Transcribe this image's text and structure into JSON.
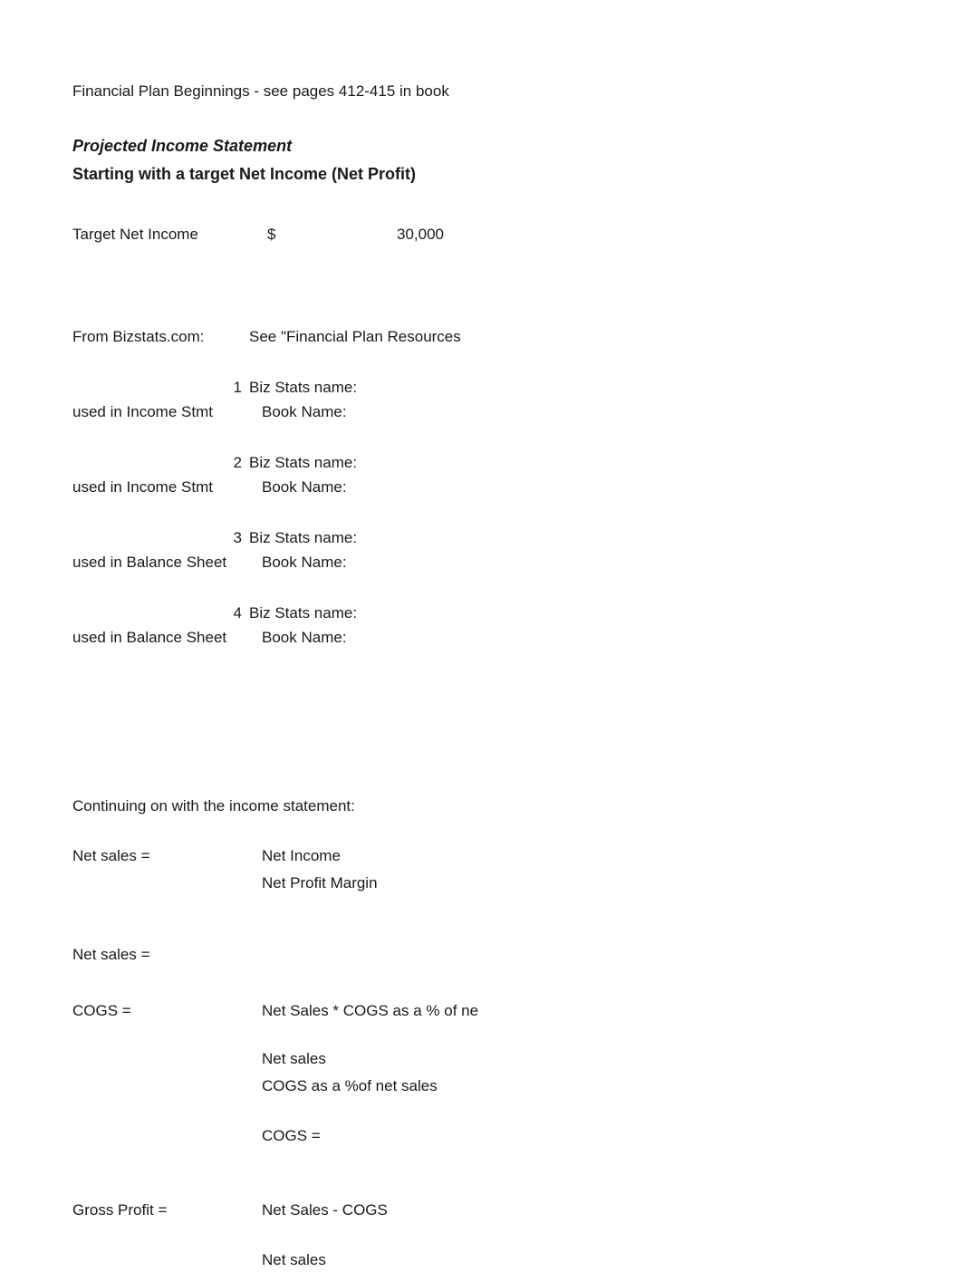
{
  "intro": "Financial Plan Beginnings - see pages 412-415 in book",
  "heading1": "Projected Income Statement",
  "heading2": "Starting with a target Net Income (Net Profit)",
  "target": {
    "label": "Target Net Income",
    "currency": "$",
    "amount": "30,000"
  },
  "bizstats": {
    "label": "From Bizstats.com:",
    "note": "See \"Financial Plan Resources",
    "items": [
      {
        "n": "1",
        "biz": "Biz Stats name:",
        "used": "used in Income Stmt",
        "book": "Book Name:"
      },
      {
        "n": "2",
        "biz": "Biz Stats name:",
        "used": "used in Income Stmt",
        "book": "Book Name:"
      },
      {
        "n": "3",
        "biz": "Biz Stats name:",
        "used": "used in Balance Sheet",
        "book": "Book Name:"
      },
      {
        "n": "4",
        "biz": "Biz Stats name:",
        "used": "used in Balance Sheet",
        "book": "Book Name:"
      }
    ]
  },
  "continuing": "Continuing on with the income statement:",
  "netsales1": {
    "label": "Net sales =",
    "line1": "Net Income",
    "line2": "Net Profit Margin"
  },
  "netsales2": {
    "label": "Net sales ="
  },
  "cogs": {
    "label": "COGS =",
    "formula": "Net Sales * COGS as a % of ne",
    "line_a": "Net sales",
    "line_b": "COGS as a %of net sales",
    "result": "COGS ="
  },
  "gross": {
    "label": "Gross Profit =",
    "formula": "Net Sales - COGS",
    "line_a": "Net sales"
  },
  "colors": {
    "text": "#1a1a1a",
    "background": "#ffffff"
  }
}
